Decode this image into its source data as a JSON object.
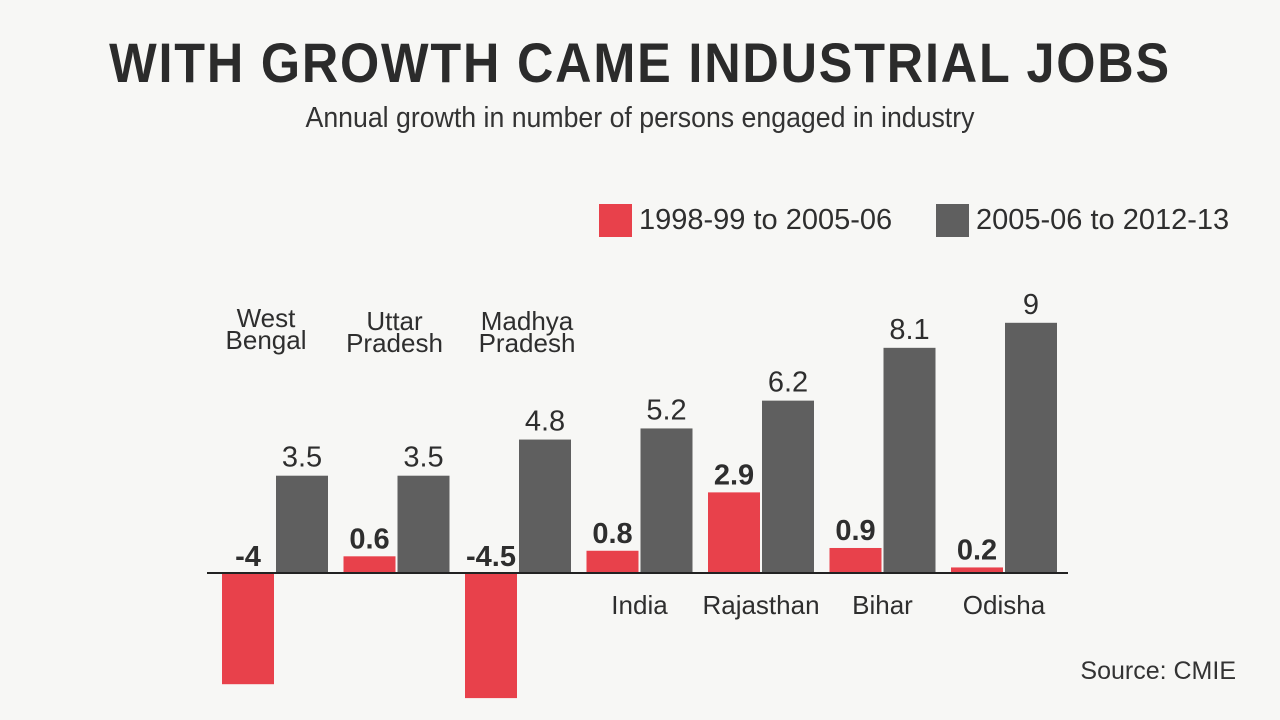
{
  "title": "WITH GROWTH CAME INDUSTRIAL JOBS",
  "subtitle": "Annual growth in number of persons engaged in industry",
  "source": "Source: CMIE",
  "colors": {
    "series1": "#e8414b",
    "series2": "#5f5f5f",
    "axis": "#222222",
    "text": "#2e2e2e"
  },
  "chart_data": {
    "type": "bar",
    "title": "WITH GROWTH CAME INDUSTRIAL JOBS",
    "subtitle": "Annual growth in number of persons engaged in industry",
    "categories": [
      "West Bengal",
      "Uttar Pradesh",
      "Madhya Pradesh",
      "India",
      "Rajasthan",
      "Bihar",
      "Odisha"
    ],
    "category_label_lines": [
      [
        "West",
        "Bengal"
      ],
      [
        "Uttar",
        "Pradesh"
      ],
      [
        "Madhya",
        "Pradesh"
      ],
      [
        "India"
      ],
      [
        "Rajasthan"
      ],
      [
        "Bihar"
      ],
      [
        "Odisha"
      ]
    ],
    "series": [
      {
        "name": "1998-99 to 2005-06",
        "values": [
          -4,
          0.6,
          -4.5,
          0.8,
          2.9,
          0.9,
          0.2
        ],
        "labels": [
          "-4",
          "0.6",
          "-4.5",
          "0.8",
          "2.9",
          "0.9",
          "0.2"
        ]
      },
      {
        "name": "2005-06 to 2012-13",
        "values": [
          3.5,
          3.5,
          4.8,
          5.2,
          6.2,
          8.1,
          9
        ],
        "labels": [
          "3.5",
          "3.5",
          "4.8",
          "5.2",
          "6.2",
          "8.1",
          "9"
        ]
      }
    ],
    "ylim": [
      -4.5,
      9
    ],
    "grid": false,
    "legend": "top-right",
    "source": "Source: CMIE"
  }
}
